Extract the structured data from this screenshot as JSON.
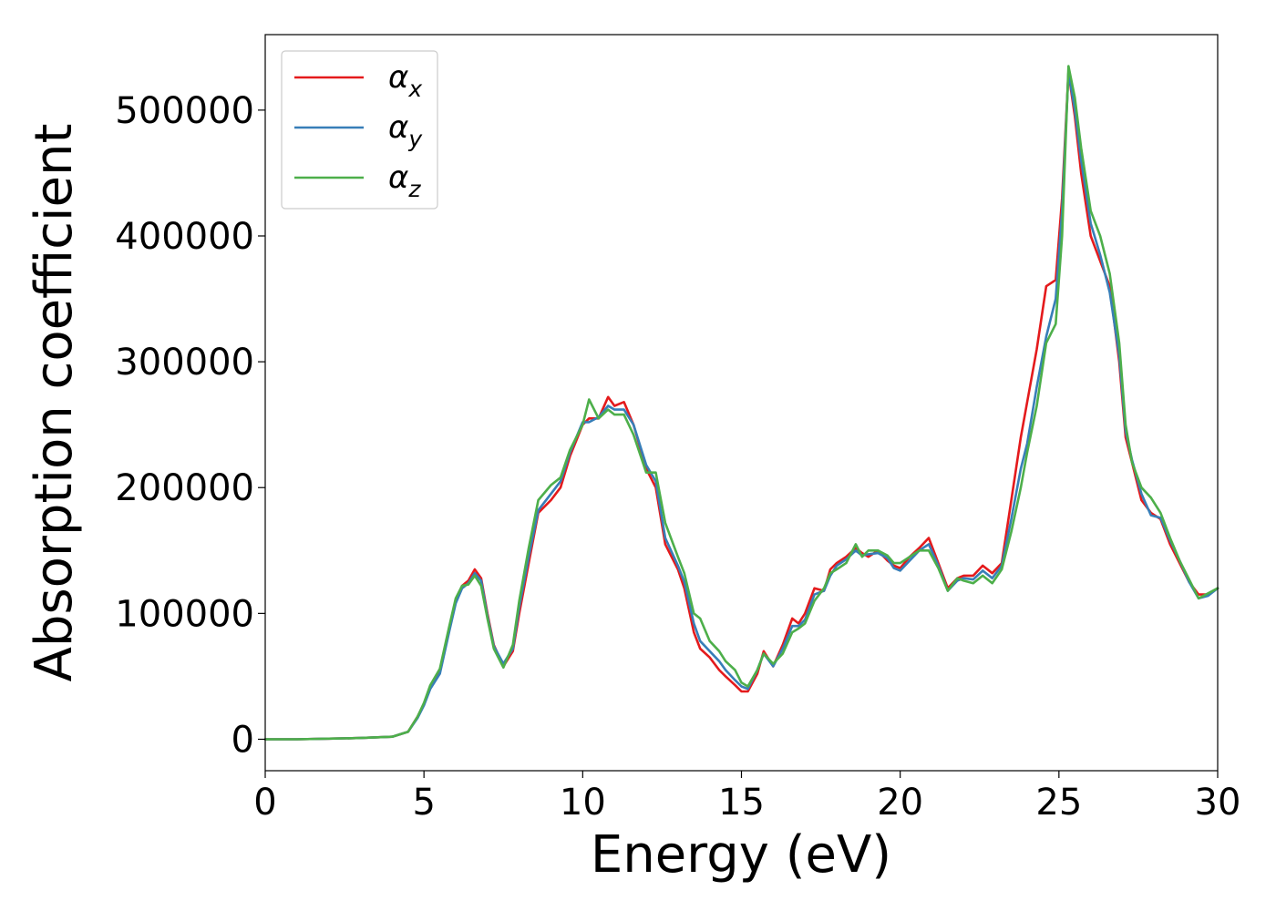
{
  "chart_data": {
    "type": "line",
    "xlabel": "Energy (eV)",
    "ylabel": "Absorption coefficient",
    "xlim": [
      0,
      30
    ],
    "ylim": [
      -25000,
      560000
    ],
    "xticks": [
      0,
      5,
      10,
      15,
      20,
      25,
      30
    ],
    "xtick_labels": [
      "0",
      "5",
      "10",
      "15",
      "20",
      "25",
      "30"
    ],
    "yticks": [
      0,
      100000,
      200000,
      300000,
      400000,
      500000
    ],
    "ytick_labels": [
      "0",
      "100000",
      "200000",
      "300000",
      "400000",
      "500000"
    ],
    "grid": false,
    "legend_position": "top-left",
    "series": [
      {
        "name": "αx",
        "legend_base": "α",
        "legend_sub": "x",
        "color": "#e41a1c",
        "x": [
          0,
          1,
          2,
          3,
          4,
          4.5,
          4.8,
          5,
          5.2,
          5.5,
          5.8,
          6,
          6.2,
          6.4,
          6.6,
          6.8,
          7,
          7.2,
          7.5,
          7.8,
          8,
          8.3,
          8.6,
          9,
          9.3,
          9.6,
          10,
          10.2,
          10.5,
          10.8,
          11,
          11.3,
          11.6,
          12,
          12.3,
          12.6,
          13,
          13.2,
          13.5,
          13.7,
          14,
          14.3,
          14.5,
          14.8,
          15,
          15.2,
          15.5,
          15.7,
          16,
          16.3,
          16.6,
          16.8,
          17,
          17.3,
          17.6,
          17.8,
          18,
          18.3,
          18.6,
          18.8,
          19,
          19.3,
          19.6,
          19.8,
          20,
          20.3,
          20.6,
          20.9,
          21.2,
          21.5,
          21.8,
          22,
          22.3,
          22.6,
          22.9,
          23.2,
          23.5,
          23.8,
          24,
          24.3,
          24.6,
          24.9,
          25.1,
          25.3,
          25.5,
          25.7,
          26,
          26.3,
          26.6,
          26.9,
          27.1,
          27.3,
          27.6,
          27.9,
          28.2,
          28.5,
          28.8,
          29.1,
          29.4,
          29.7,
          30
        ],
        "y": [
          0,
          0,
          500,
          1000,
          2000,
          6000,
          18000,
          28000,
          42000,
          55000,
          88000,
          110000,
          122000,
          126000,
          135000,
          128000,
          100000,
          75000,
          58000,
          70000,
          100000,
          140000,
          180000,
          190000,
          200000,
          225000,
          250000,
          255000,
          255000,
          272000,
          265000,
          268000,
          250000,
          215000,
          200000,
          155000,
          135000,
          120000,
          85000,
          72000,
          65000,
          55000,
          50000,
          43000,
          38000,
          38000,
          52000,
          70000,
          58000,
          75000,
          96000,
          92000,
          100000,
          120000,
          118000,
          135000,
          140000,
          145000,
          152000,
          148000,
          145000,
          150000,
          142000,
          138000,
          136000,
          145000,
          152000,
          160000,
          140000,
          120000,
          128000,
          130000,
          130000,
          138000,
          132000,
          140000,
          190000,
          240000,
          268000,
          310000,
          360000,
          365000,
          430000,
          530000,
          495000,
          450000,
          400000,
          380000,
          360000,
          300000,
          240000,
          220000,
          190000,
          180000,
          175000,
          155000,
          140000,
          125000,
          115000,
          115000,
          120000
        ]
      },
      {
        "name": "αy",
        "legend_base": "α",
        "legend_sub": "y",
        "color": "#377eb8",
        "x": [
          0,
          1,
          2,
          3,
          4,
          4.5,
          4.8,
          5,
          5.2,
          5.5,
          5.8,
          6,
          6.2,
          6.4,
          6.6,
          6.8,
          7,
          7.2,
          7.5,
          7.8,
          8,
          8.3,
          8.6,
          9,
          9.3,
          9.6,
          10,
          10.2,
          10.5,
          10.8,
          11,
          11.3,
          11.6,
          12,
          12.3,
          12.6,
          13,
          13.2,
          13.5,
          13.7,
          14,
          14.3,
          14.5,
          14.8,
          15,
          15.2,
          15.5,
          15.7,
          16,
          16.3,
          16.6,
          16.8,
          17,
          17.3,
          17.6,
          17.8,
          18,
          18.3,
          18.6,
          18.8,
          19,
          19.3,
          19.6,
          19.8,
          20,
          20.3,
          20.6,
          20.9,
          21.2,
          21.5,
          21.8,
          22,
          22.3,
          22.6,
          22.9,
          23.2,
          23.5,
          23.8,
          24,
          24.3,
          24.6,
          24.9,
          25.1,
          25.3,
          25.5,
          25.7,
          26,
          26.3,
          26.6,
          26.9,
          27.1,
          27.3,
          27.6,
          27.9,
          28.2,
          28.5,
          28.8,
          29.1,
          29.4,
          29.7,
          30
        ],
        "y": [
          0,
          0,
          500,
          1000,
          2000,
          6000,
          17000,
          27000,
          40000,
          52000,
          86000,
          108000,
          120000,
          124000,
          132000,
          126000,
          98000,
          74000,
          60000,
          72000,
          105000,
          145000,
          182000,
          195000,
          205000,
          228000,
          252000,
          252000,
          256000,
          265000,
          262000,
          262000,
          250000,
          218000,
          205000,
          160000,
          138000,
          125000,
          92000,
          78000,
          70000,
          62000,
          55000,
          47000,
          42000,
          40000,
          55000,
          68000,
          58000,
          72000,
          90000,
          90000,
          95000,
          115000,
          118000,
          130000,
          138000,
          143000,
          150000,
          146000,
          147000,
          148000,
          144000,
          136000,
          134000,
          142000,
          150000,
          155000,
          138000,
          118000,
          126000,
          128000,
          127000,
          134000,
          128000,
          138000,
          175000,
          215000,
          235000,
          280000,
          320000,
          350000,
          420000,
          530000,
          500000,
          460000,
          410000,
          385000,
          355000,
          305000,
          245000,
          222000,
          195000,
          178000,
          176000,
          158000,
          142000,
          125000,
          112000,
          114000,
          120000
        ]
      },
      {
        "name": "αz",
        "legend_base": "α",
        "legend_sub": "z",
        "color": "#4daf4a",
        "x": [
          0,
          1,
          2,
          3,
          4,
          4.5,
          4.8,
          5,
          5.2,
          5.5,
          5.8,
          6,
          6.2,
          6.4,
          6.6,
          6.8,
          7,
          7.2,
          7.5,
          7.8,
          8,
          8.3,
          8.6,
          9,
          9.3,
          9.6,
          10,
          10.2,
          10.5,
          10.8,
          11,
          11.3,
          11.6,
          12,
          12.3,
          12.6,
          13,
          13.2,
          13.5,
          13.7,
          14,
          14.3,
          14.5,
          14.8,
          15,
          15.2,
          15.5,
          15.7,
          16,
          16.3,
          16.6,
          16.8,
          17,
          17.3,
          17.6,
          17.8,
          18,
          18.3,
          18.6,
          18.8,
          19,
          19.3,
          19.6,
          19.8,
          20,
          20.3,
          20.6,
          20.9,
          21.2,
          21.5,
          21.8,
          22,
          22.3,
          22.6,
          22.9,
          23.2,
          23.5,
          23.8,
          24,
          24.3,
          24.6,
          24.9,
          25.1,
          25.3,
          25.5,
          25.7,
          26,
          26.3,
          26.6,
          26.9,
          27.1,
          27.3,
          27.6,
          27.9,
          28.2,
          28.5,
          28.8,
          29.1,
          29.4,
          29.7,
          30
        ],
        "y": [
          0,
          0,
          500,
          1000,
          2000,
          6000,
          18000,
          29000,
          43000,
          56000,
          90000,
          112000,
          122000,
          123000,
          130000,
          122000,
          96000,
          72000,
          57000,
          75000,
          110000,
          152000,
          190000,
          202000,
          208000,
          230000,
          250000,
          270000,
          255000,
          262000,
          258000,
          258000,
          242000,
          212000,
          212000,
          172000,
          145000,
          132000,
          100000,
          96000,
          78000,
          70000,
          62000,
          55000,
          45000,
          42000,
          55000,
          68000,
          60000,
          68000,
          85000,
          88000,
          92000,
          110000,
          120000,
          132000,
          135000,
          140000,
          155000,
          145000,
          150000,
          150000,
          146000,
          140000,
          140000,
          145000,
          150000,
          150000,
          136000,
          118000,
          128000,
          126000,
          124000,
          130000,
          124000,
          135000,
          165000,
          200000,
          228000,
          265000,
          315000,
          330000,
          400000,
          535000,
          510000,
          470000,
          420000,
          400000,
          370000,
          315000,
          250000,
          220000,
          200000,
          192000,
          180000,
          160000,
          142000,
          127000,
          112000,
          116000,
          120000
        ]
      }
    ]
  }
}
